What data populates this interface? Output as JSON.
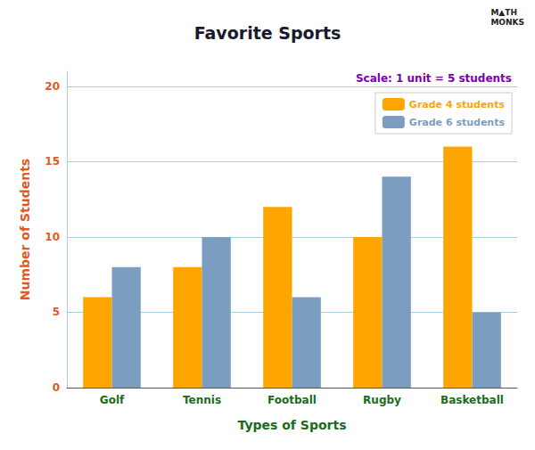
{
  "chart_data": {
    "type": "bar",
    "title": "Favorite Sports",
    "xlabel": "Types of Sports",
    "ylabel": "Number of Students",
    "categories": [
      "Golf",
      "Tennis",
      "Football",
      "Rugby",
      "Basketball"
    ],
    "series": [
      {
        "name": "Grade 4 students",
        "color": "#FFA500",
        "values": [
          6,
          8,
          12,
          10,
          16
        ]
      },
      {
        "name": "Grade 6 students",
        "color": "#7B9EC0",
        "values": [
          8,
          10,
          6,
          14,
          5
        ]
      }
    ],
    "ylim": [
      0,
      21
    ],
    "yticks": [
      0,
      5,
      10,
      15,
      20
    ],
    "grid": true,
    "legend": "upper right",
    "annotations": [
      "Scale: 1 unit = 5 students",
      "M▲TH\nMONKS"
    ]
  }
}
